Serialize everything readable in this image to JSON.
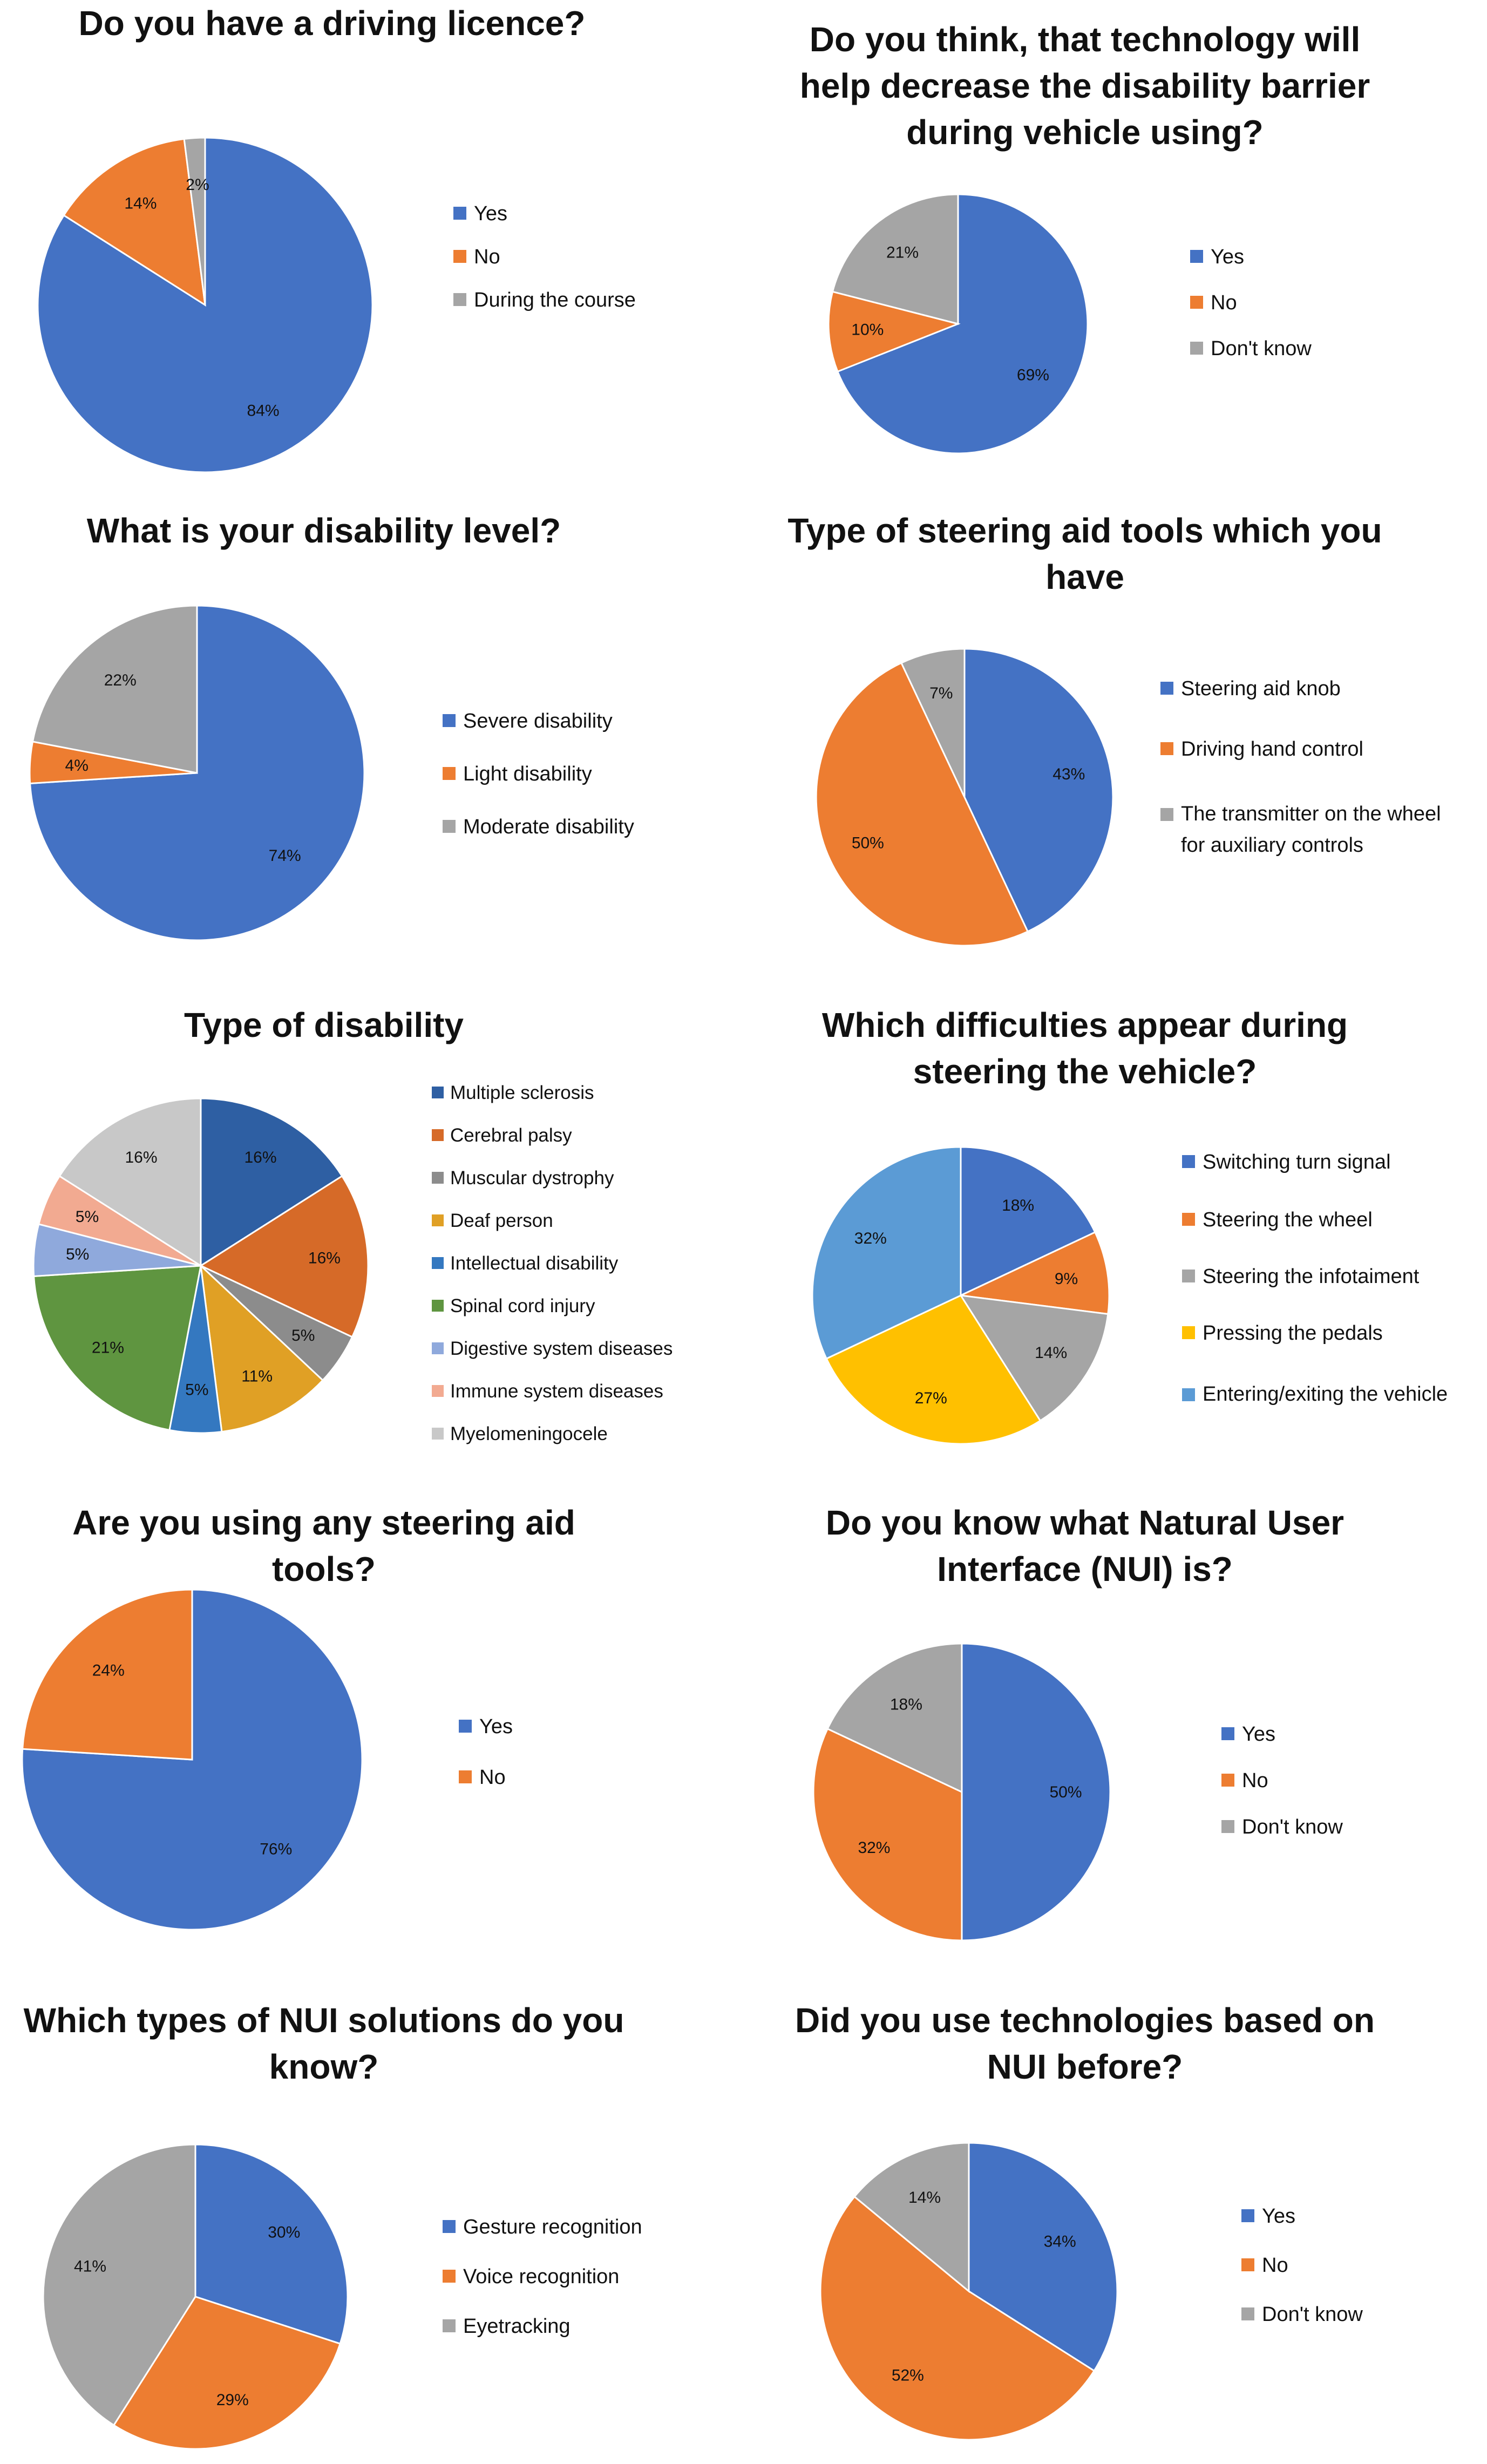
{
  "chart_data": [
    {
      "type": "pie",
      "title": "Do you have a driving licence?",
      "categories": [
        "Yes",
        "No",
        "During the course"
      ],
      "values": [
        84,
        14,
        2
      ],
      "labels": [
        "84%",
        "14%",
        "2%"
      ],
      "colors": [
        "#4472c4",
        "#ed7d31",
        "#a5a5a5"
      ]
    },
    {
      "type": "pie",
      "title": "Do you think, that technology will help decrease the disability barrier during vehicle using?",
      "categories": [
        "Yes",
        "No",
        "Don't know"
      ],
      "values": [
        69,
        10,
        21
      ],
      "labels": [
        "69%",
        "10%",
        "21%"
      ],
      "colors": [
        "#4472c4",
        "#ed7d31",
        "#a5a5a5"
      ]
    },
    {
      "type": "pie",
      "title": "What is your disability level?",
      "categories": [
        "Severe disability",
        "Light disability",
        "Moderate disability"
      ],
      "values": [
        74,
        4,
        22
      ],
      "labels": [
        "74%",
        "4%",
        "22%"
      ],
      "colors": [
        "#4472c4",
        "#ed7d31",
        "#a5a5a5"
      ]
    },
    {
      "type": "pie",
      "title": "Type of steering aid tools which you have",
      "categories": [
        "Steering aid knob",
        "Driving hand control",
        "The transmitter on the wheel for auxiliary controls"
      ],
      "values": [
        43,
        50,
        7
      ],
      "labels": [
        "43%",
        "50%",
        "7%"
      ],
      "colors": [
        "#4472c4",
        "#ed7d31",
        "#a5a5a5"
      ]
    },
    {
      "type": "pie",
      "title": "Type of disability",
      "categories": [
        "Multiple sclerosis",
        "Cerebral palsy",
        "Muscular dystrophy",
        "Deaf person",
        "Intellectual disability",
        "Spinal cord injury",
        "Digestive system diseases",
        "Immune system diseases",
        "Myelomeningocele"
      ],
      "values": [
        16,
        16,
        5,
        11,
        5,
        21,
        5,
        5,
        16
      ],
      "labels": [
        "16%",
        "16%",
        "5%",
        "11%",
        "5%",
        "21%",
        "5%",
        "5%",
        "16%"
      ],
      "colors": [
        "#2e5fa3",
        "#d66a28",
        "#8c8c8c",
        "#e0a025",
        "#3478c0",
        "#5f9540",
        "#8fa9dc",
        "#f2aa91",
        "#c8c8c8"
      ]
    },
    {
      "type": "pie",
      "title": "Which difficulties appear during steering the vehicle?",
      "categories": [
        "Switching turn signal",
        "Steering the wheel",
        "Steering the infotaiment",
        "Pressing the pedals",
        "Entering/exiting the vehicle"
      ],
      "values": [
        18,
        9,
        14,
        27,
        32
      ],
      "labels": [
        "18%",
        "9%",
        "14%",
        "27%",
        "32%"
      ],
      "colors": [
        "#4472c4",
        "#ed7d31",
        "#a5a5a5",
        "#ffc000",
        "#5b9bd5"
      ]
    },
    {
      "type": "pie",
      "title": "Are you using any steering aid tools?",
      "categories": [
        "Yes",
        "No"
      ],
      "values": [
        76,
        24
      ],
      "labels": [
        "76%",
        "24%"
      ],
      "colors": [
        "#4472c4",
        "#ed7d31"
      ]
    },
    {
      "type": "pie",
      "title": "Do you know what Natural User Interface (NUI) is?",
      "categories": [
        "Yes",
        "No",
        "Don't know"
      ],
      "values": [
        50,
        32,
        18
      ],
      "labels": [
        "50%",
        "32%",
        "18%"
      ],
      "colors": [
        "#4472c4",
        "#ed7d31",
        "#a5a5a5"
      ]
    },
    {
      "type": "pie",
      "title": "Which types of NUI solutions do you know?",
      "categories": [
        "Gesture recognition",
        "Voice recognition",
        "Eyetracking"
      ],
      "values": [
        30,
        29,
        41
      ],
      "labels": [
        "30%",
        "29%",
        "41%"
      ],
      "colors": [
        "#4472c4",
        "#ed7d31",
        "#a5a5a5"
      ]
    },
    {
      "type": "pie",
      "title": "Did you use technologies based on NUI before?",
      "categories": [
        "Yes",
        "No",
        "Don't know"
      ],
      "values": [
        34,
        52,
        14
      ],
      "labels": [
        "34%",
        "52%",
        "14%"
      ],
      "colors": [
        "#4472c4",
        "#ed7d31",
        "#a5a5a5"
      ]
    }
  ]
}
